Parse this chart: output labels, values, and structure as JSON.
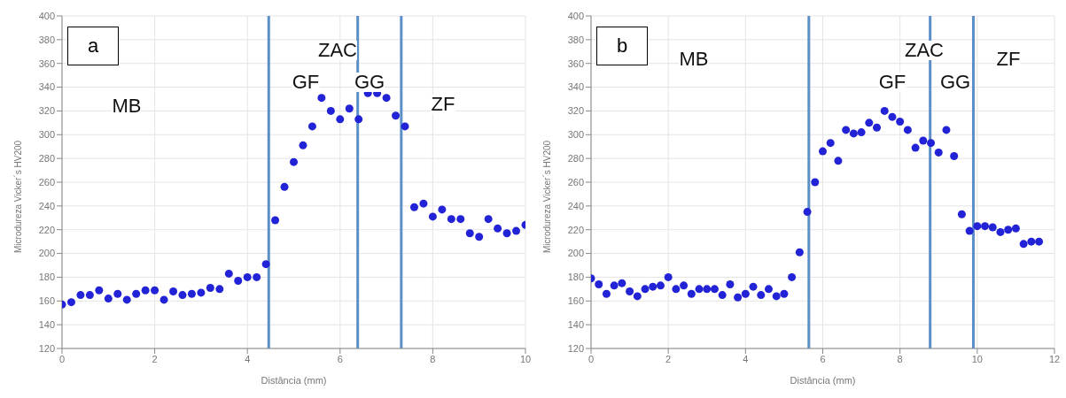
{
  "chart_data": [
    {
      "type": "scatter",
      "xlabel": "Distância (mm)",
      "ylabel": "Microdureza Vicker´s HV200",
      "x": [
        0,
        0.2,
        0.4,
        0.6,
        0.8,
        1.0,
        1.2,
        1.4,
        1.6,
        1.8,
        2.0,
        2.2,
        2.4,
        2.6,
        2.8,
        3.0,
        3.2,
        3.4,
        3.6,
        3.8,
        4.0,
        4.2,
        4.4,
        4.6,
        4.8,
        5.0,
        5.2,
        5.4,
        5.6,
        5.8,
        6.0,
        6.2,
        6.4,
        6.6,
        6.8,
        7.0,
        7.2,
        7.4,
        7.6,
        7.8,
        8.0,
        8.2,
        8.4,
        8.6,
        8.8,
        9.0,
        9.2,
        9.4,
        9.6,
        9.8,
        10.0
      ],
      "series": [
        {
          "color": "#2222d6",
          "values": [
            157,
            159,
            165,
            165,
            169,
            162,
            166,
            161,
            166,
            169,
            169,
            161,
            168,
            165,
            166,
            167,
            171,
            170,
            183,
            177,
            180,
            180,
            191,
            228,
            256,
            277,
            291,
            307,
            331,
            320,
            313,
            322,
            313,
            335,
            335,
            331,
            316,
            307,
            239,
            242,
            231,
            237,
            229,
            229,
            217,
            214,
            229,
            221,
            217,
            219,
            224
          ]
        }
      ],
      "xlim": [
        0,
        10
      ],
      "xticks": [
        0,
        2,
        4,
        6,
        8,
        10
      ],
      "ylim": [
        120,
        400
      ],
      "yticks": [
        120,
        140,
        160,
        180,
        200,
        220,
        240,
        260,
        280,
        300,
        320,
        340,
        360,
        380,
        400
      ],
      "grid": true,
      "marker": "circle",
      "ref_lines": [
        {
          "axis": "x",
          "value": 4.46,
          "color": "#5b8fc7"
        },
        {
          "axis": "x",
          "value": 6.38,
          "color": "#5b8fc7"
        },
        {
          "axis": "x",
          "value": 7.32,
          "color": "#5b8fc7"
        }
      ],
      "annotations": [
        "a",
        "MB",
        "ZAC",
        "GF",
        "GG",
        "ZF"
      ]
    },
    {
      "type": "scatter",
      "xlabel": "Distância (mm)",
      "ylabel": "Microdureza Vicker´s HV200",
      "x": [
        0,
        0.2,
        0.4,
        0.6,
        0.8,
        1.0,
        1.2,
        1.4,
        1.6,
        1.8,
        2.0,
        2.2,
        2.4,
        2.6,
        2.8,
        3.0,
        3.2,
        3.4,
        3.6,
        3.8,
        4.0,
        4.2,
        4.4,
        4.6,
        4.8,
        5.0,
        5.2,
        5.4,
        5.6,
        5.8,
        6.0,
        6.2,
        6.4,
        6.6,
        6.8,
        7.0,
        7.2,
        7.4,
        7.6,
        7.8,
        8.0,
        8.2,
        8.4,
        8.6,
        8.8,
        9.0,
        9.2,
        9.4,
        9.6,
        9.8,
        10.0,
        10.2,
        10.4,
        10.6,
        10.8,
        11.0,
        11.2,
        11.4,
        11.6
      ],
      "series": [
        {
          "color": "#2222d6",
          "values": [
            179,
            174,
            166,
            173,
            175,
            168,
            164,
            170,
            172,
            173,
            180,
            170,
            173,
            166,
            170,
            170,
            170,
            165,
            174,
            163,
            166,
            172,
            165,
            170,
            164,
            166,
            180,
            201,
            235,
            260,
            286,
            293,
            278,
            304,
            301,
            302,
            310,
            306,
            320,
            315,
            311,
            304,
            289,
            295,
            293,
            285,
            304,
            282,
            233,
            219,
            223,
            223,
            222,
            218,
            220,
            221,
            208,
            210,
            210
          ]
        }
      ],
      "xlim": [
        0,
        12
      ],
      "xticks": [
        0,
        2,
        4,
        6,
        8,
        10,
        12
      ],
      "ylim": [
        120,
        400
      ],
      "yticks": [
        120,
        140,
        160,
        180,
        200,
        220,
        240,
        260,
        280,
        300,
        320,
        340,
        360,
        380,
        400
      ],
      "grid": true,
      "marker": "circle",
      "ref_lines": [
        {
          "axis": "x",
          "value": 5.64,
          "color": "#5b8fc7"
        },
        {
          "axis": "x",
          "value": 8.78,
          "color": "#5b8fc7"
        },
        {
          "axis": "x",
          "value": 9.9,
          "color": "#5b8fc7"
        }
      ],
      "annotations": [
        "b",
        "MB",
        "ZAC",
        "GF",
        "GG",
        "ZF"
      ]
    }
  ]
}
